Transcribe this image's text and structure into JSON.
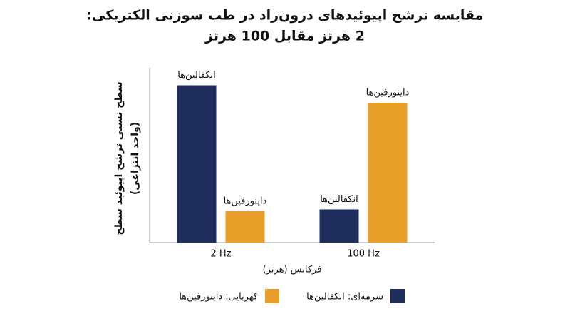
{
  "chart_data": {
    "type": "bar",
    "title": [
      "مقایسه ترشح اپیوئیدهای درون‌زاد در طب سوزنی الکتریکی:",
      "2 هرتز مقابل 100 هرتز"
    ],
    "y_label": [
      "سطح نسبی ترشح اپیوئید سطح",
      "(واحد انتزاعی)"
    ],
    "x_label": "فرکانس (هرتز)",
    "categories": [
      "2 Hz",
      "100 Hz"
    ],
    "series": [
      {
        "name": "سرمه‌ای: انکفالین‌ها",
        "bar_label": "انکفالین‌ها",
        "color": "#1f2d5c",
        "values": [
          90,
          19
        ]
      },
      {
        "name": "کهربایی: داینورفین‌ها",
        "bar_label": "داینورفین‌ها",
        "color": "#e8a02a",
        "values": [
          18,
          80
        ]
      }
    ],
    "ylim": [
      0,
      100
    ]
  }
}
